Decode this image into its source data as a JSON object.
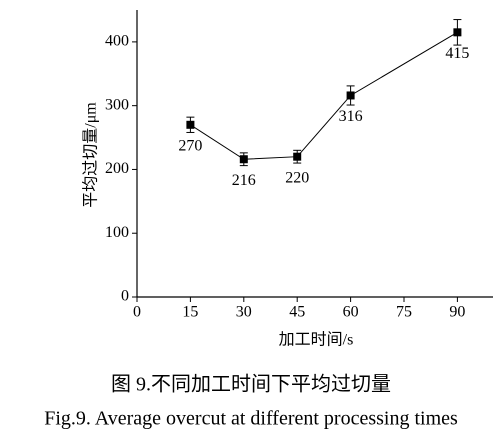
{
  "chart_data": {
    "type": "line",
    "x": [
      15,
      30,
      45,
      60,
      90
    ],
    "values": [
      270,
      216,
      220,
      316,
      415
    ],
    "errors": [
      12,
      10,
      10,
      15,
      20
    ],
    "color": "#000000",
    "xlabel": "加工时间/s",
    "ylabel": "平均过切量/μm",
    "xlim": [
      0,
      100
    ],
    "xticks": [
      0,
      15,
      30,
      45,
      60,
      75,
      90
    ],
    "ylim": [
      0,
      450
    ],
    "yticks": [
      0,
      100,
      200,
      300,
      400
    ],
    "caption_cn": "图 9.不同加工时间下平均过切量",
    "caption_en": "Fig.9. Average overcut at different processing times"
  }
}
